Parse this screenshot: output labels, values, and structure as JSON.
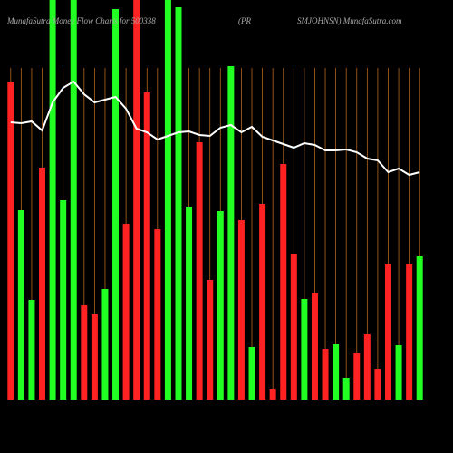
{
  "chart_data": {
    "type": "bar",
    "title_parts": [
      "MunafaSutra  Money Flow  Charts for 500338",
      "(PR",
      "SMJOHNSN) MunafaSutra.com"
    ],
    "values": [
      351,
      209,
      110,
      256,
      441,
      220,
      441,
      104,
      94,
      122,
      431,
      194,
      441,
      339,
      188,
      441,
      433,
      213,
      284,
      132,
      208,
      368,
      198,
      58,
      216,
      12,
      260,
      161,
      111,
      118,
      56,
      61,
      24,
      51,
      72,
      34,
      150,
      60,
      150,
      158
    ],
    "colors": [
      "#ff2222",
      "#22ff22",
      "#22ff22",
      "#ff2222",
      "#22ff22",
      "#22ff22",
      "#22ff22",
      "#ff2222",
      "#ff2222",
      "#22ff22",
      "#22ff22",
      "#ff2222",
      "#ff2222",
      "#ff2222",
      "#ff2222",
      "#22ff22",
      "#22ff22",
      "#22ff22",
      "#ff2222",
      "#ff2222",
      "#22ff22",
      "#22ff22",
      "#ff2222",
      "#22ff22",
      "#ff2222",
      "#ff2222",
      "#ff2222",
      "#ff2222",
      "#22ff22",
      "#ff2222",
      "#ff2222",
      "#22ff22",
      "#22ff22",
      "#ff2222",
      "#ff2222",
      "#ff2222",
      "#ff2222",
      "#22ff22",
      "#ff2222",
      "#22ff22"
    ],
    "line": {
      "color": "#ffffff",
      "values": [
        306,
        305,
        307,
        297,
        328,
        344,
        351,
        337,
        328,
        331,
        334,
        321,
        299,
        295,
        287,
        291,
        295,
        296,
        292,
        291,
        300,
        303,
        295,
        301,
        290,
        286,
        282,
        278,
        283,
        281,
        275,
        275,
        276,
        273,
        266,
        264,
        251,
        255,
        248,
        251
      ]
    },
    "ylim": [
      0,
      441
    ],
    "grid_color": "#b5651d"
  }
}
